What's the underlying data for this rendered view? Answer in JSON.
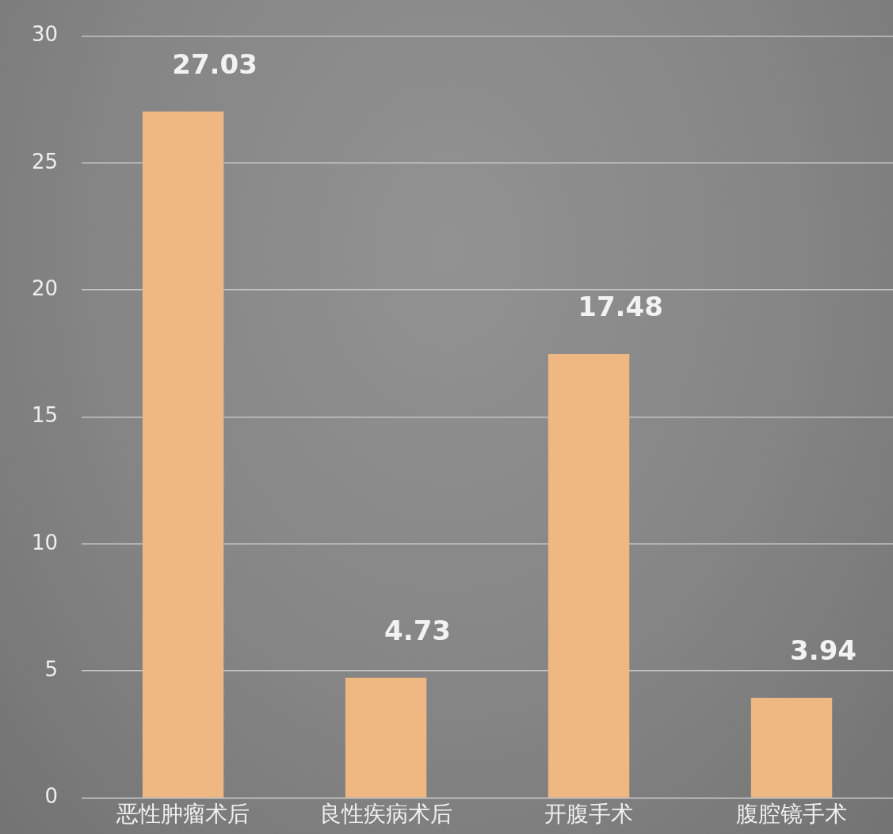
{
  "chart_data": {
    "type": "bar",
    "categories": [
      "恶性肿瘤术后",
      "良性疾病术后",
      "开腹手术",
      "腹腔镜手术"
    ],
    "values": [
      27.03,
      4.73,
      17.48,
      3.94
    ],
    "color": "#efb883",
    "ylim": [
      0,
      30
    ],
    "yticks": [
      0,
      5,
      10,
      15,
      20,
      25,
      30
    ],
    "grid": "y",
    "data_labels": true
  }
}
